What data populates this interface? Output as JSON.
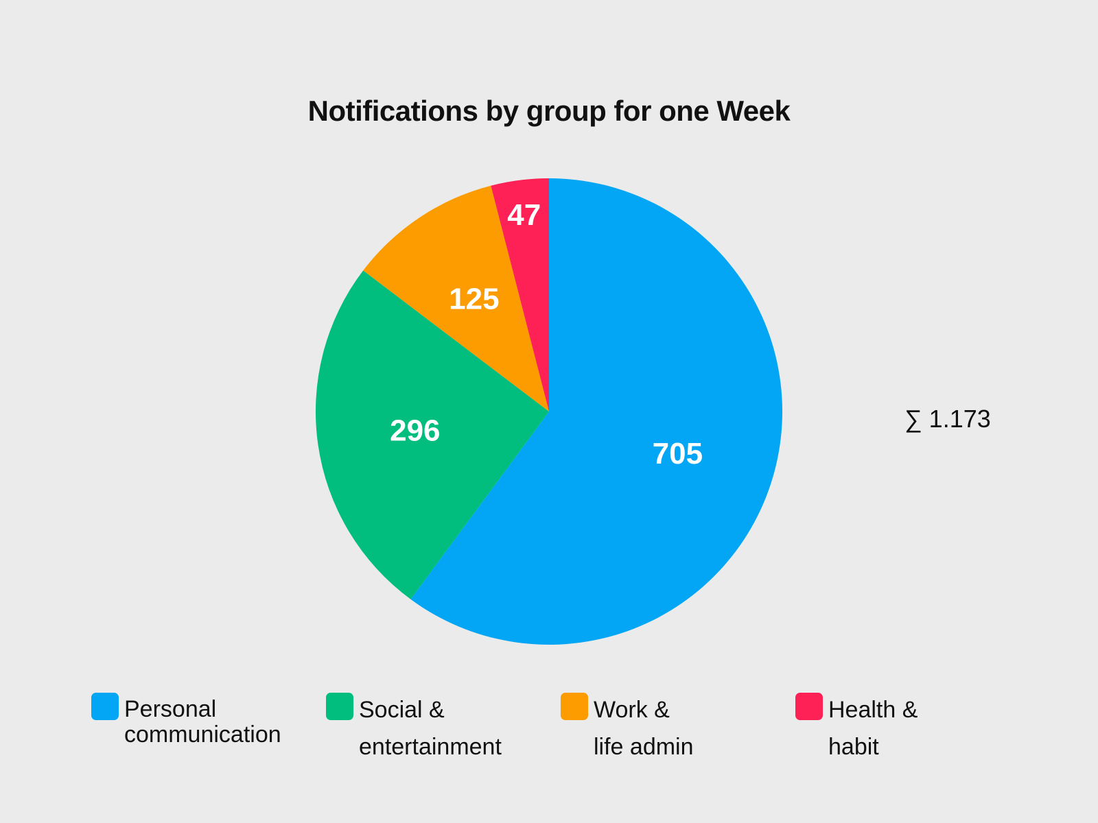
{
  "chart_data": {
    "type": "pie",
    "title": "Notifications by group for one Week",
    "total_label": "∑ 1.173",
    "slices": [
      {
        "name_lines": [
          "Personal",
          "communication"
        ],
        "value": 705,
        "label": "705",
        "color": "#03a6f4"
      },
      {
        "name_lines": [
          "Social &",
          "entertainment"
        ],
        "value": 296,
        "label": "296",
        "color": "#01bd7e"
      },
      {
        "name_lines": [
          "Work &",
          "life admin"
        ],
        "value": 125,
        "label": "125",
        "color": "#fc9c01"
      },
      {
        "name_lines": [
          "Health &",
          "habit"
        ],
        "value": 47,
        "label": "47",
        "color": "#fd2156"
      }
    ],
    "start_angle": "12 o'clock",
    "direction": "clockwise",
    "legend_position": "bottom"
  }
}
